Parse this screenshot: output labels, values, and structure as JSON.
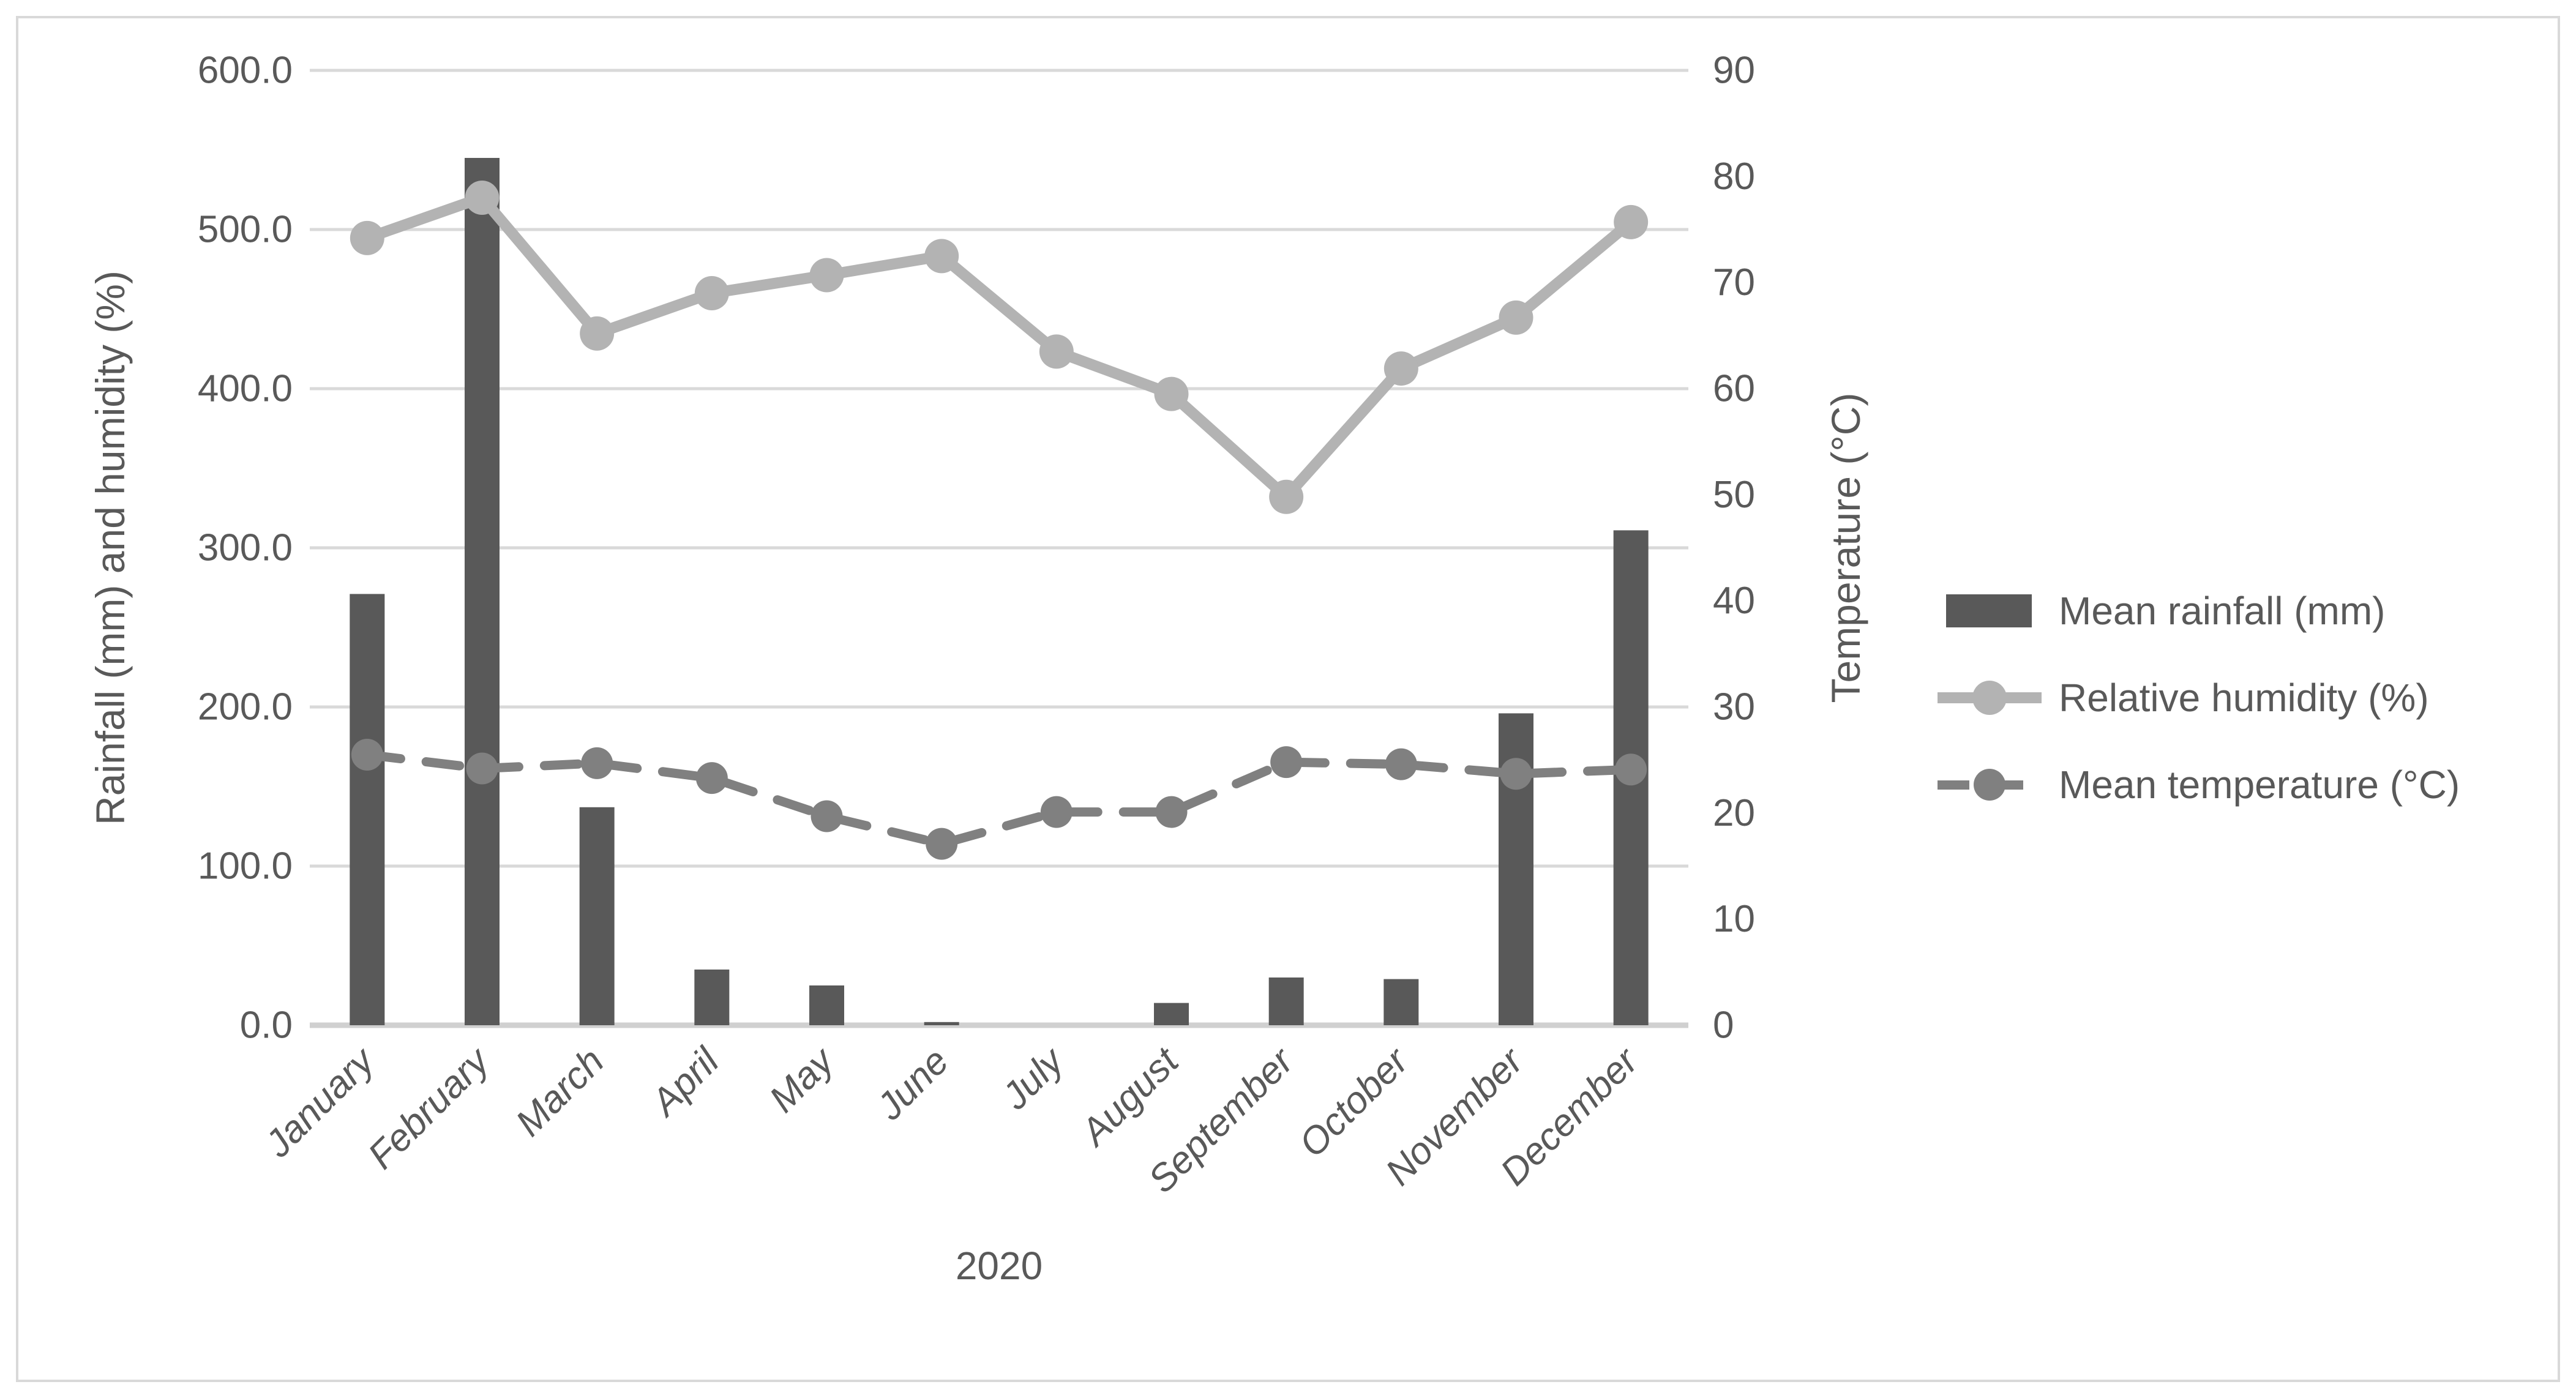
{
  "style": {
    "background": "#ffffff",
    "border_color": "#d9d9d9",
    "grid_color": "#d9d9d9",
    "axis_line_color": "#d0d0d0",
    "text_color": "#595959",
    "bar_color": "#595959",
    "humidity_color": "#b3b3b3",
    "temperature_color": "#808080"
  },
  "chart_data": {
    "type": "combo",
    "categories": [
      "January",
      "February",
      "March",
      "April",
      "May",
      "June",
      "July",
      "August",
      "September",
      "October",
      "November",
      "December"
    ],
    "x_group_label": "2020",
    "left_axis": {
      "label": "Rainfall (mm) and humidity (%)",
      "min": 0,
      "max": 600,
      "step": 100,
      "tick_labels": [
        "0.0",
        "100.0",
        "200.0",
        "300.0",
        "400.0",
        "500.0",
        "600.0"
      ]
    },
    "right_axis": {
      "label": "Temperature (°C)",
      "min": 0,
      "max": 90,
      "step": 10,
      "tick_labels": [
        "0",
        "10",
        "20",
        "30",
        "40",
        "50",
        "60",
        "70",
        "80",
        "90"
      ]
    },
    "grid": true,
    "legend_position": "right",
    "series": [
      {
        "name": "Mean rainfall (mm)",
        "type": "bar",
        "axis": "left",
        "color": "#595959",
        "values": [
          271,
          545,
          137,
          35,
          25,
          2,
          0,
          14,
          30,
          29,
          196,
          311
        ]
      },
      {
        "name": "Relative humidity (%)",
        "type": "line",
        "line_style": "solid",
        "marker": "circle",
        "axis": "right",
        "color": "#b3b3b3",
        "values": [
          74.2,
          78.0,
          65.2,
          69.0,
          70.7,
          72.5,
          63.5,
          59.5,
          49.8,
          61.9,
          66.7,
          75.7
        ]
      },
      {
        "name": "Mean temperature (°C)",
        "type": "line",
        "line_style": "dashed",
        "marker": "circle",
        "axis": "right",
        "color": "#808080",
        "values": [
          25.5,
          24.2,
          24.7,
          23.3,
          19.7,
          17.1,
          20.1,
          20.1,
          24.8,
          24.6,
          23.7,
          24.1
        ]
      }
    ]
  }
}
